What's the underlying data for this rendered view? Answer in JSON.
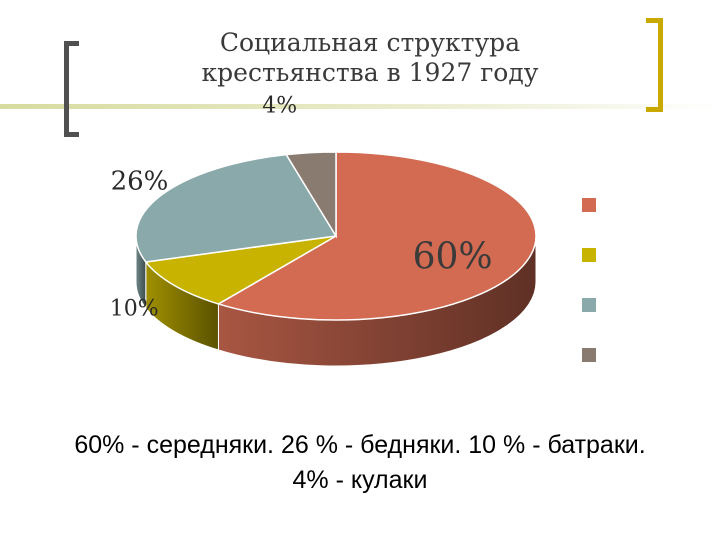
{
  "title": {
    "line1": "Социальная структура",
    "line2": "крестьянства в 1927 году"
  },
  "caption": {
    "line1": "60% - середняки. 26 % - бедняки. 10 % - батраки.",
    "line2": "4% - кулаки"
  },
  "colors": {
    "slice_red": "#d26b52",
    "slice_yellow": "#c8b400",
    "slice_teal": "#8aa9aa",
    "slice_gray": "#8a7b70",
    "left_bracket": "#505050",
    "right_bracket": "#c9a800"
  },
  "chart_data": {
    "type": "pie",
    "style": "3d",
    "legend": "right",
    "slices": [
      {
        "value": 60,
        "label": "60%",
        "color": "#d26b52"
      },
      {
        "value": 10,
        "label": "10%",
        "color": "#c8b400"
      },
      {
        "value": 26,
        "label": "26%",
        "color": "#8aa9aa"
      },
      {
        "value": 4,
        "label": "4%",
        "color": "#8a7b70"
      }
    ]
  }
}
